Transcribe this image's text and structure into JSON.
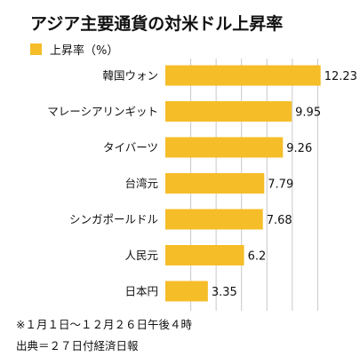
{
  "chart_data": {
    "type": "bar",
    "orientation": "horizontal",
    "title": "アジア主要通貨の対米ドル上昇率",
    "categories": [
      "韓国ウォン",
      "マレーシアリンギット",
      "タイバーツ",
      "台湾元",
      "シンガポールドル",
      "人民元",
      "日本円"
    ],
    "series": [
      {
        "name": "上昇率（%）",
        "values": [
          12.23,
          9.95,
          9.26,
          7.79,
          7.68,
          6.2,
          3.35
        ],
        "value_labels": [
          "12.23",
          "9.95",
          "9.26",
          "7.79",
          "7.68",
          "6.2",
          "3.35"
        ]
      }
    ],
    "xlim": [
      0,
      14
    ],
    "grid": true,
    "legend": "top-left",
    "bar_color": "#F5BD28",
    "grid_color": "#c8c8c8",
    "notes": [
      "※１月１日〜１２月２６日午後４時",
      "出典＝２７日付経済日報"
    ]
  }
}
